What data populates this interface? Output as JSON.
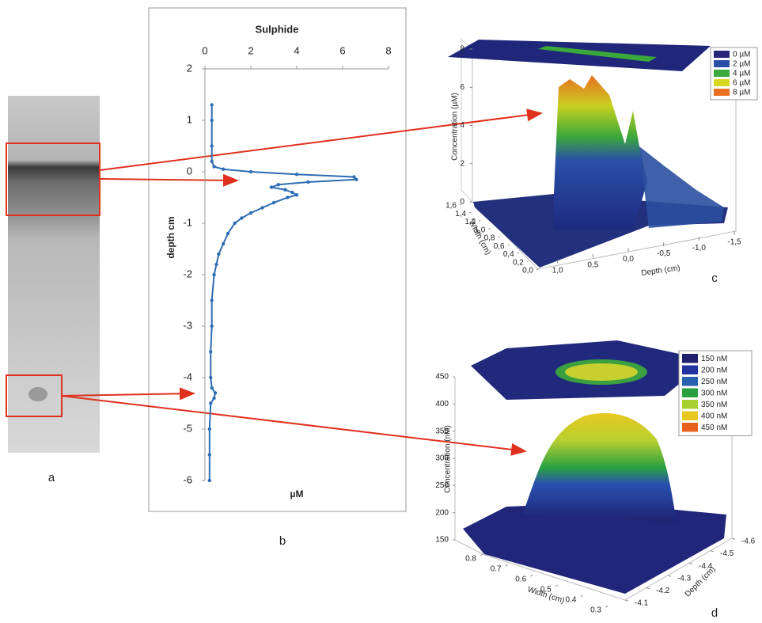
{
  "panel_labels": [
    "a",
    "b",
    "c",
    "d"
  ],
  "chart_data": [
    {
      "type": "line",
      "title": "Sulphide",
      "xlabel": "µM",
      "ylabel": "depth cm",
      "xlim": [
        0,
        8
      ],
      "xticks": [
        0,
        2,
        4,
        6,
        8
      ],
      "ylim": [
        -6,
        2
      ],
      "yticks": [
        -6,
        -5,
        -4,
        -3,
        -2,
        -1,
        0,
        1,
        2
      ],
      "series": [
        {
          "color": "#2e6db4",
          "x": [
            0.3,
            0.3,
            0.3,
            0.3,
            0.4,
            0.8,
            2,
            4,
            6.5,
            6.6,
            4.5,
            3.2,
            2.9,
            3.5,
            3.8,
            4.0,
            3.6,
            3.0,
            2.5,
            2.0,
            1.6,
            1.3,
            1.0,
            0.8,
            0.6,
            0.5,
            0.4,
            0.3,
            0.3,
            0.25,
            0.25,
            0.3,
            0.45,
            0.4,
            0.25,
            0.2,
            0.2,
            0.2
          ],
          "y": [
            1.3,
            1.0,
            0.5,
            0.2,
            0.1,
            0.05,
            0,
            -0.05,
            -0.1,
            -0.15,
            -0.2,
            -0.25,
            -0.3,
            -0.35,
            -0.4,
            -0.45,
            -0.5,
            -0.6,
            -0.7,
            -0.8,
            -0.9,
            -1.0,
            -1.2,
            -1.4,
            -1.6,
            -1.8,
            -2.0,
            -2.5,
            -3.0,
            -3.5,
            -4.0,
            -4.2,
            -4.3,
            -4.4,
            -4.5,
            -5.0,
            -5.5,
            -6.0
          ]
        }
      ]
    },
    {
      "type": "surface",
      "zlabel": "Concentration (µM)",
      "xlabel": "Depth (cm)",
      "ylabel": "Width (cm)",
      "zlim": [
        0,
        8
      ],
      "zticks": [
        0,
        2,
        4,
        6,
        8
      ],
      "ylim": [
        0,
        1.6
      ],
      "yticks": [
        {
          "value": 0,
          "label": "0,0"
        },
        {
          "value": 0.2,
          "label": "0,2"
        },
        {
          "value": 0.4,
          "label": "0,4"
        },
        {
          "value": 0.6,
          "label": "0,6"
        },
        {
          "value": 0.8,
          "label": "0,8"
        },
        {
          "value": 1.0,
          "label": "1,0"
        },
        {
          "value": 1.2,
          "label": "1,2"
        },
        {
          "value": 1.4,
          "label": "1,4"
        },
        {
          "value": 1.6,
          "label": "1,6"
        }
      ],
      "xlim": [
        1.5,
        -1.5
      ],
      "xticks": [
        {
          "value": 1.0,
          "label": "1,0"
        },
        {
          "value": 0.5,
          "label": "0,5"
        },
        {
          "value": 0,
          "label": "0,0"
        },
        {
          "value": -0.5,
          "label": "-0,5"
        },
        {
          "value": -1.0,
          "label": "-1,0"
        },
        {
          "value": -1.5,
          "label": "-1,5"
        }
      ],
      "legend": [
        {
          "name": "0 µM",
          "color": "#26267a"
        },
        {
          "name": "2 µM",
          "color": "#2a4fa8"
        },
        {
          "name": "4 µM",
          "color": "#3aa83a"
        },
        {
          "name": "6 µM",
          "color": "#d8d820"
        },
        {
          "name": "8 µM",
          "color": "#e87020"
        }
      ]
    },
    {
      "type": "surface",
      "zlabel": "Concentration (nM)",
      "xlabel": "Depth (cm)",
      "ylabel": "Width (cm)",
      "zlim": [
        150,
        450
      ],
      "zticks": [
        150,
        200,
        250,
        300,
        350,
        400,
        450
      ],
      "ylim": [
        0.8,
        0.3
      ],
      "yticks": [
        0.8,
        0.7,
        0.6,
        0.5,
        0.4,
        0.3
      ],
      "xlim": [
        -4.1,
        -4.6
      ],
      "xticks": [
        -4.1,
        -4.2,
        -4.3,
        -4.4,
        -4.5,
        -4.6
      ],
      "legend": [
        {
          "name": "150 nM",
          "color": "#20206e"
        },
        {
          "name": "200 nM",
          "color": "#2233a0"
        },
        {
          "name": "250 nM",
          "color": "#2a60b0"
        },
        {
          "name": "300 nM",
          "color": "#28a040"
        },
        {
          "name": "350 nM",
          "color": "#a8d030"
        },
        {
          "name": "400 nM",
          "color": "#e8c820"
        },
        {
          "name": "450 nM",
          "color": "#e86020"
        }
      ]
    }
  ]
}
